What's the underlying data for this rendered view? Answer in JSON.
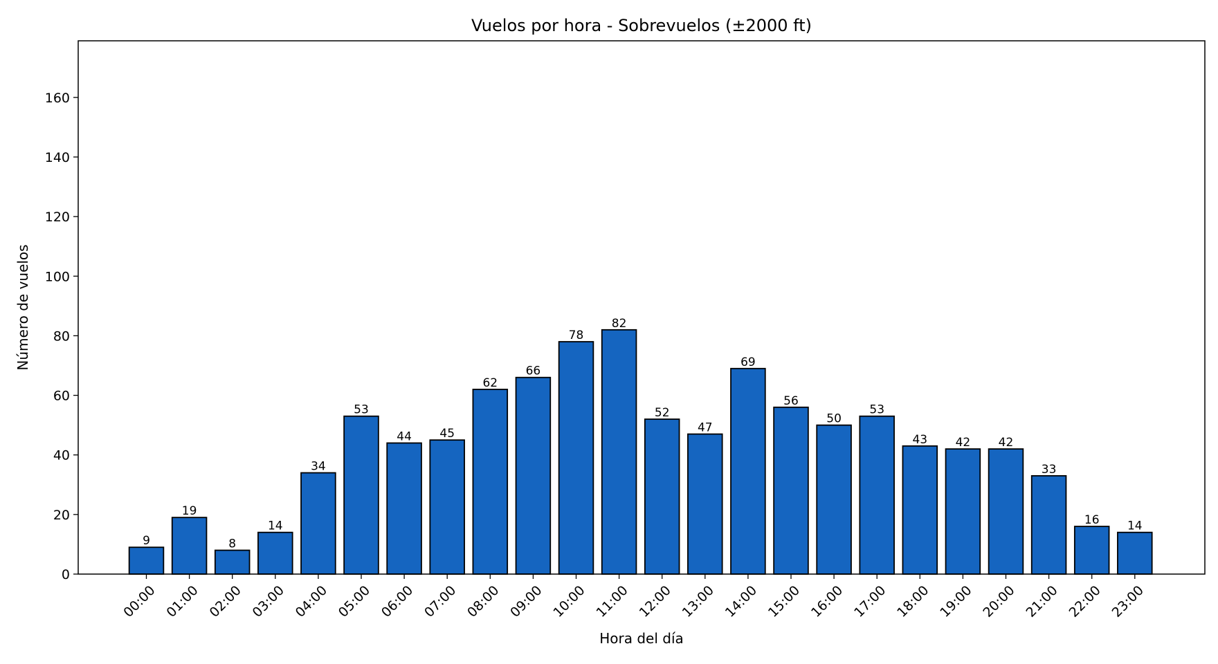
{
  "chart_data": {
    "type": "bar",
    "title": "Vuelos por hora - Sobrevuelos (±2000 ft)",
    "xlabel": "Hora del día",
    "ylabel": "Número de vuelos",
    "categories": [
      "00:00",
      "01:00",
      "02:00",
      "03:00",
      "04:00",
      "05:00",
      "06:00",
      "07:00",
      "08:00",
      "09:00",
      "10:00",
      "11:00",
      "12:00",
      "13:00",
      "14:00",
      "15:00",
      "16:00",
      "17:00",
      "18:00",
      "19:00",
      "20:00",
      "21:00",
      "22:00",
      "23:00"
    ],
    "values": [
      9,
      19,
      8,
      14,
      34,
      53,
      44,
      45,
      62,
      66,
      78,
      82,
      52,
      47,
      69,
      56,
      50,
      53,
      43,
      42,
      42,
      33,
      16,
      14
    ],
    "ylim": [
      0,
      179
    ],
    "yticks": [
      0,
      20,
      40,
      60,
      80,
      100,
      120,
      140,
      160
    ],
    "grid": false,
    "legend": "none",
    "bar_color": "#1565c0",
    "edge_color": "#000000",
    "data_labels": true
  }
}
